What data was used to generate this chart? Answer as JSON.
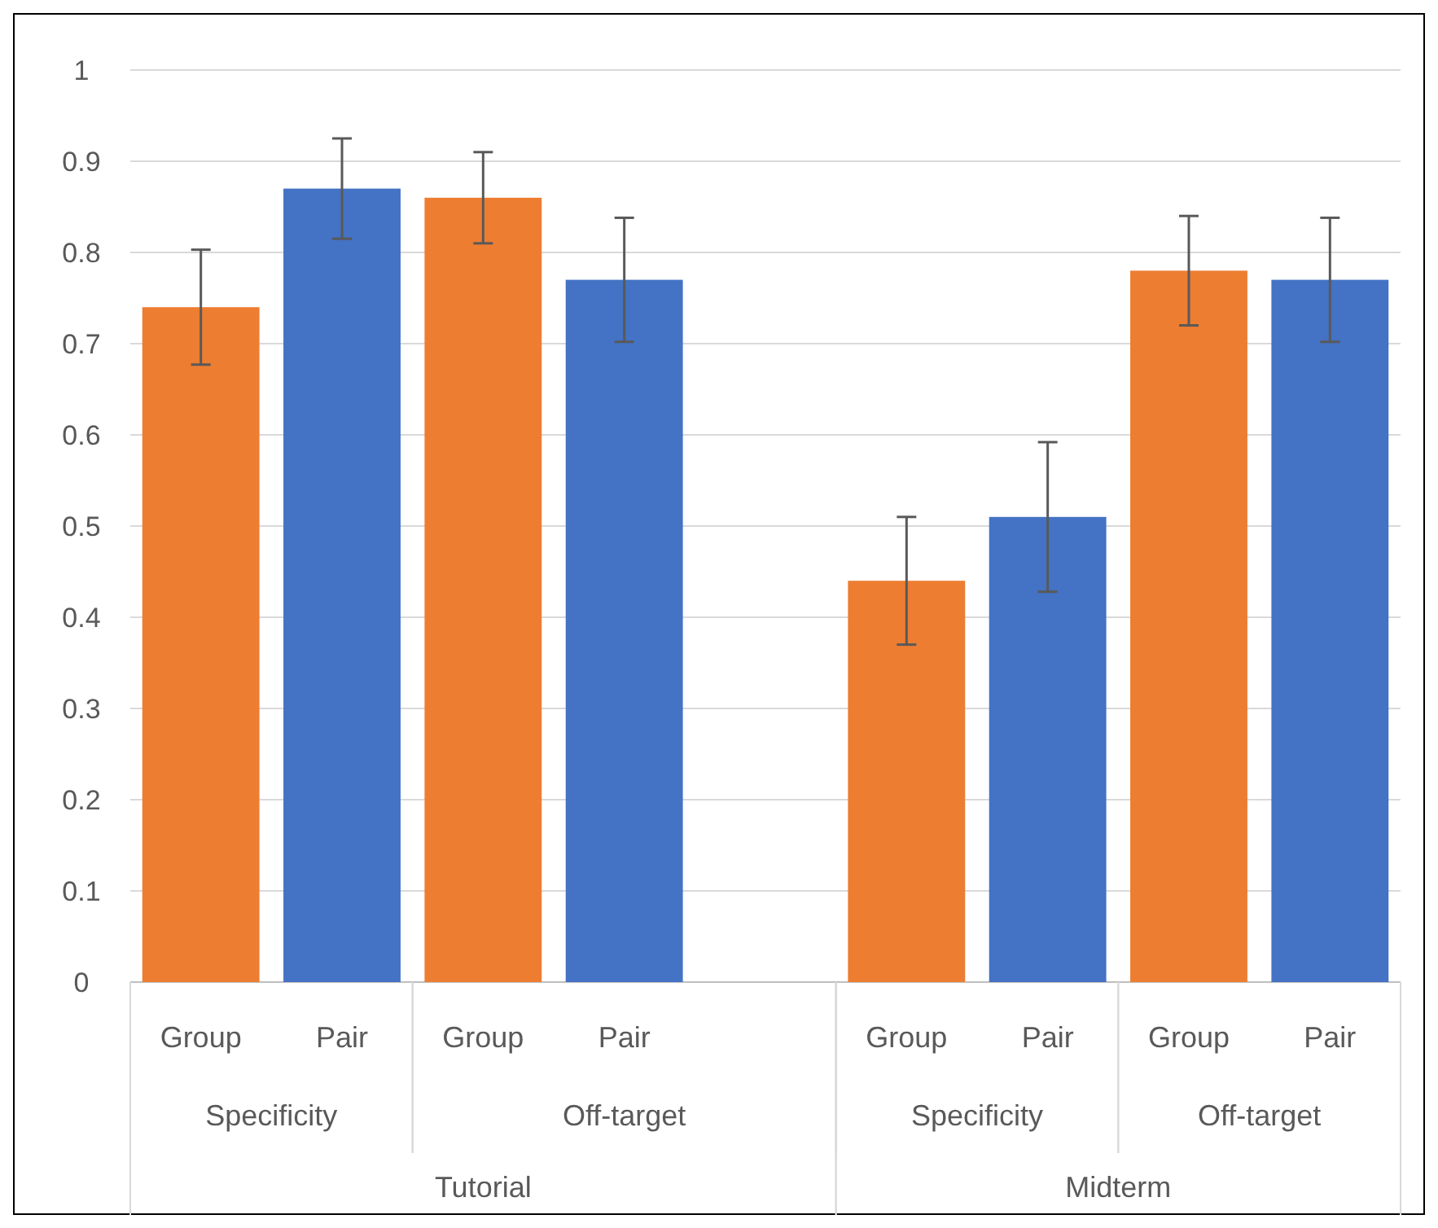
{
  "chart_data": {
    "type": "bar",
    "categories": [
      "Group",
      "Pair",
      "Group",
      "Pair",
      null,
      "Group",
      "Pair",
      "Group",
      "Pair"
    ],
    "values": [
      0.74,
      0.87,
      0.86,
      0.77,
      null,
      0.44,
      0.51,
      0.78,
      0.77
    ],
    "colors": [
      "#ed7d31",
      "#4472c4",
      "#ed7d31",
      "#4472c4",
      null,
      "#ed7d31",
      "#4472c4",
      "#ed7d31",
      "#4472c4"
    ],
    "errors": [
      0.063,
      0.055,
      0.05,
      0.068,
      null,
      0.07,
      0.082,
      0.06,
      0.068
    ],
    "ylim": [
      0,
      1
    ],
    "yticks": [
      0,
      0.1,
      0.2,
      0.3,
      0.4,
      0.5,
      0.6,
      0.7,
      0.8,
      0.9,
      1
    ],
    "grid": "y",
    "annotations": [
      "Specificity",
      "Off-target",
      "Specificity",
      "Off-target",
      "Tutorial",
      "Midterm"
    ]
  }
}
